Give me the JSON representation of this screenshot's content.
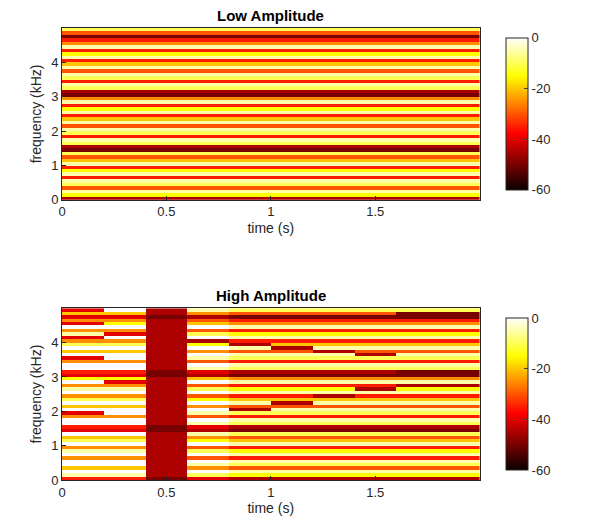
{
  "chart_data": [
    {
      "type": "heatmap",
      "title": "Low Amplitude",
      "x_label": "time (s)",
      "y_label": "frequency (kHz)",
      "x": [
        0.5,
        1.5
      ],
      "y": [
        0.05,
        0.15,
        0.25,
        0.35,
        0.45,
        0.55,
        0.65,
        0.75,
        0.85,
        0.95,
        1.05,
        1.15,
        1.25,
        1.35,
        1.45,
        1.55,
        1.65,
        1.75,
        1.85,
        1.95,
        2.05,
        2.15,
        2.25,
        2.35,
        2.45,
        2.55,
        2.65,
        2.75,
        2.85,
        2.95,
        3.05,
        3.15,
        3.25,
        3.35,
        3.45,
        3.55,
        3.65,
        3.75,
        3.85,
        3.95,
        4.05,
        4.15,
        4.25,
        4.35,
        4.45,
        4.55,
        4.65,
        4.75,
        4.85,
        4.95
      ],
      "z": [
        [
          -45,
          -45
        ],
        [
          -15,
          -15
        ],
        [
          -5,
          -5
        ],
        [
          -30,
          -30
        ],
        [
          -10,
          -10
        ],
        [
          -5,
          -5
        ],
        [
          -35,
          -35
        ],
        [
          -5,
          -5
        ],
        [
          -15,
          -15
        ],
        [
          -35,
          -35
        ],
        [
          -5,
          -5
        ],
        [
          -20,
          -20
        ],
        [
          -30,
          -30
        ],
        [
          -10,
          -10
        ],
        [
          -50,
          -50
        ],
        [
          -45,
          -45
        ],
        [
          -10,
          -10
        ],
        [
          -5,
          -5
        ],
        [
          -35,
          -35
        ],
        [
          -10,
          -10
        ],
        [
          -5,
          -5
        ],
        [
          -30,
          -30
        ],
        [
          -5,
          -5
        ],
        [
          -20,
          -20
        ],
        [
          -35,
          -35
        ],
        [
          -5,
          -5
        ],
        [
          -15,
          -15
        ],
        [
          -35,
          -35
        ],
        [
          -5,
          -5
        ],
        [
          -25,
          -25
        ],
        [
          -50,
          -50
        ],
        [
          -45,
          -45
        ],
        [
          -10,
          -10
        ],
        [
          -5,
          -5
        ],
        [
          -35,
          -35
        ],
        [
          -10,
          -10
        ],
        [
          -5,
          -5
        ],
        [
          -30,
          -30
        ],
        [
          -5,
          -5
        ],
        [
          -20,
          -20
        ],
        [
          -35,
          -35
        ],
        [
          -5,
          -5
        ],
        [
          -15,
          -15
        ],
        [
          -35,
          -35
        ],
        [
          -5,
          -5
        ],
        [
          -25,
          -25
        ],
        [
          -35,
          -35
        ],
        [
          -50,
          -50
        ],
        [
          -30,
          -30
        ],
        [
          -10,
          -10
        ]
      ],
      "xlim": [
        0,
        2
      ],
      "ylim": [
        0,
        5
      ],
      "xticks": [
        0,
        0.5,
        1,
        1.5
      ],
      "yticks": [
        0,
        1,
        2,
        3,
        4
      ],
      "colorbar_range": [
        -60,
        0
      ],
      "colorbar_ticks": [
        0,
        -20,
        -40,
        -60
      ]
    },
    {
      "type": "heatmap",
      "title": "High Amplitude",
      "x_label": "time (s)",
      "y_label": "frequency (kHz)",
      "x": [
        0.1,
        0.3,
        0.5,
        0.7,
        0.9,
        1.1,
        1.3,
        1.5,
        1.7,
        1.9
      ],
      "y": [
        0.05,
        0.15,
        0.25,
        0.35,
        0.45,
        0.55,
        0.65,
        0.75,
        0.85,
        0.95,
        1.05,
        1.15,
        1.25,
        1.35,
        1.45,
        1.55,
        1.65,
        1.75,
        1.85,
        1.95,
        2.05,
        2.15,
        2.25,
        2.35,
        2.45,
        2.55,
        2.65,
        2.75,
        2.85,
        2.95,
        3.05,
        3.15,
        3.25,
        3.35,
        3.45,
        3.55,
        3.65,
        3.75,
        3.85,
        3.95,
        4.05,
        4.15,
        4.25,
        4.35,
        4.45,
        4.55,
        4.65,
        4.75,
        4.85,
        4.95
      ],
      "z": [
        [
          -35,
          -35,
          -50,
          -40,
          -45,
          -45,
          -45,
          -45,
          -45,
          -45
        ],
        [
          -5,
          -5,
          -45,
          -10,
          -15,
          -15,
          -15,
          -15,
          -15,
          -15
        ],
        [
          0,
          0,
          -45,
          0,
          -5,
          -5,
          -5,
          -5,
          -5,
          -5
        ],
        [
          -20,
          -20,
          -45,
          -25,
          -30,
          -30,
          -30,
          -30,
          -30,
          -30
        ],
        [
          0,
          0,
          -45,
          -5,
          -10,
          -10,
          -10,
          -10,
          -10,
          -10
        ],
        [
          0,
          0,
          -45,
          0,
          -5,
          -5,
          -5,
          -5,
          -5,
          -5
        ],
        [
          -25,
          -25,
          -45,
          -30,
          -35,
          -35,
          -35,
          -35,
          -35,
          -35
        ],
        [
          0,
          0,
          -45,
          0,
          -5,
          -5,
          -5,
          -5,
          -5,
          -5
        ],
        [
          -5,
          -5,
          -45,
          -10,
          -15,
          -15,
          -15,
          -15,
          -15,
          -15
        ],
        [
          -25,
          -25,
          -45,
          -30,
          -35,
          -35,
          -35,
          -35,
          -35,
          -35
        ],
        [
          0,
          0,
          -45,
          0,
          -5,
          -5,
          -5,
          -5,
          -5,
          -5
        ],
        [
          -10,
          -10,
          -45,
          -15,
          -20,
          -20,
          -20,
          -20,
          -20,
          -20
        ],
        [
          -20,
          -20,
          -45,
          -25,
          -30,
          -30,
          -30,
          -30,
          -30,
          -30
        ],
        [
          0,
          0,
          -45,
          -5,
          -10,
          -10,
          -10,
          -10,
          -10,
          -10
        ],
        [
          -40,
          -40,
          -50,
          -45,
          -50,
          -50,
          -50,
          -50,
          -50,
          -50
        ],
        [
          -35,
          -35,
          -50,
          -40,
          -45,
          -45,
          -45,
          -45,
          -45,
          -45
        ],
        [
          0,
          0,
          -45,
          -5,
          -10,
          -10,
          -10,
          -10,
          -10,
          -10
        ],
        [
          0,
          0,
          -45,
          0,
          -5,
          -5,
          -5,
          -5,
          -5,
          -5
        ],
        [
          -25,
          -25,
          -45,
          -30,
          -35,
          -35,
          -35,
          -35,
          -35,
          -35
        ],
        [
          -40,
          0,
          -45,
          -5,
          -10,
          -10,
          -10,
          -10,
          -10,
          -10
        ],
        [
          0,
          0,
          -45,
          0,
          -45,
          -5,
          -5,
          -5,
          -5,
          -5
        ],
        [
          -20,
          -20,
          -45,
          -25,
          -30,
          -30,
          -30,
          -30,
          -30,
          -30
        ],
        [
          0,
          0,
          -45,
          0,
          -5,
          -45,
          -5,
          -5,
          -5,
          -5
        ],
        [
          -10,
          -10,
          -45,
          -15,
          -20,
          -20,
          -20,
          -20,
          -20,
          -20
        ],
        [
          -25,
          -25,
          -45,
          -30,
          -35,
          -35,
          -45,
          -35,
          -35,
          -35
        ],
        [
          0,
          0,
          -45,
          0,
          -5,
          -5,
          -5,
          -5,
          -5,
          -5
        ],
        [
          -5,
          -5,
          -45,
          -10,
          -15,
          -15,
          -15,
          -45,
          -15,
          -15
        ],
        [
          -25,
          -25,
          -45,
          -30,
          -35,
          -35,
          -35,
          -35,
          -45,
          -45
        ],
        [
          0,
          -40,
          -45,
          0,
          -5,
          -5,
          -5,
          -5,
          -5,
          -5
        ],
        [
          -15,
          -15,
          -45,
          -20,
          -25,
          -25,
          -25,
          -25,
          -25,
          -25
        ],
        [
          -40,
          -40,
          -50,
          -45,
          -50,
          -50,
          -50,
          -50,
          -50,
          -50
        ],
        [
          -35,
          -35,
          -50,
          -40,
          -45,
          -45,
          -45,
          -45,
          -50,
          -50
        ],
        [
          0,
          0,
          -45,
          -5,
          -10,
          -10,
          -10,
          -10,
          -10,
          -10
        ],
        [
          0,
          0,
          -45,
          0,
          -5,
          -5,
          -5,
          -5,
          -5,
          -5
        ],
        [
          -25,
          -25,
          -45,
          -30,
          -35,
          -35,
          -35,
          -35,
          -35,
          -35
        ],
        [
          -40,
          0,
          -45,
          -5,
          -10,
          -10,
          -10,
          -10,
          -10,
          -10
        ],
        [
          0,
          0,
          -45,
          0,
          -5,
          -5,
          -5,
          -45,
          -5,
          -5
        ],
        [
          -20,
          -20,
          -45,
          -25,
          -30,
          -30,
          -45,
          -30,
          -30,
          -30
        ],
        [
          0,
          0,
          -45,
          0,
          -5,
          -45,
          -5,
          -5,
          -5,
          -5
        ],
        [
          -10,
          -10,
          -45,
          -15,
          -45,
          -20,
          -20,
          -20,
          -20,
          -20
        ],
        [
          -25,
          -25,
          -45,
          -45,
          -35,
          -35,
          -35,
          -35,
          -35,
          -35
        ],
        [
          -40,
          0,
          -45,
          0,
          -5,
          -5,
          -5,
          -5,
          -5,
          -5
        ],
        [
          -5,
          -40,
          -45,
          -10,
          -15,
          -15,
          -15,
          -15,
          -15,
          -15
        ],
        [
          -25,
          -25,
          -45,
          -30,
          -35,
          -35,
          -35,
          -35,
          -35,
          -35
        ],
        [
          0,
          0,
          -45,
          0,
          -5,
          -5,
          -5,
          -5,
          -5,
          -5
        ],
        [
          -40,
          -15,
          -45,
          -20,
          -25,
          -25,
          -25,
          -25,
          -25,
          -25
        ],
        [
          -25,
          -25,
          -45,
          -30,
          -35,
          -35,
          -35,
          -35,
          -35,
          -35
        ],
        [
          -40,
          -40,
          -50,
          -45,
          -50,
          -50,
          -50,
          -50,
          -50,
          -50
        ],
        [
          -20,
          -20,
          -45,
          -25,
          -30,
          -30,
          -30,
          -30,
          -50,
          -50
        ],
        [
          -40,
          0,
          -45,
          -5,
          -10,
          -10,
          -10,
          -10,
          -10,
          -10
        ]
      ],
      "xlim": [
        0,
        2
      ],
      "ylim": [
        0,
        5
      ],
      "xticks": [
        0,
        0.5,
        1,
        1.5
      ],
      "yticks": [
        0,
        1,
        2,
        3,
        4
      ],
      "colorbar_range": [
        -60,
        0
      ],
      "colorbar_ticks": [
        0,
        -20,
        -40,
        -60
      ]
    }
  ]
}
